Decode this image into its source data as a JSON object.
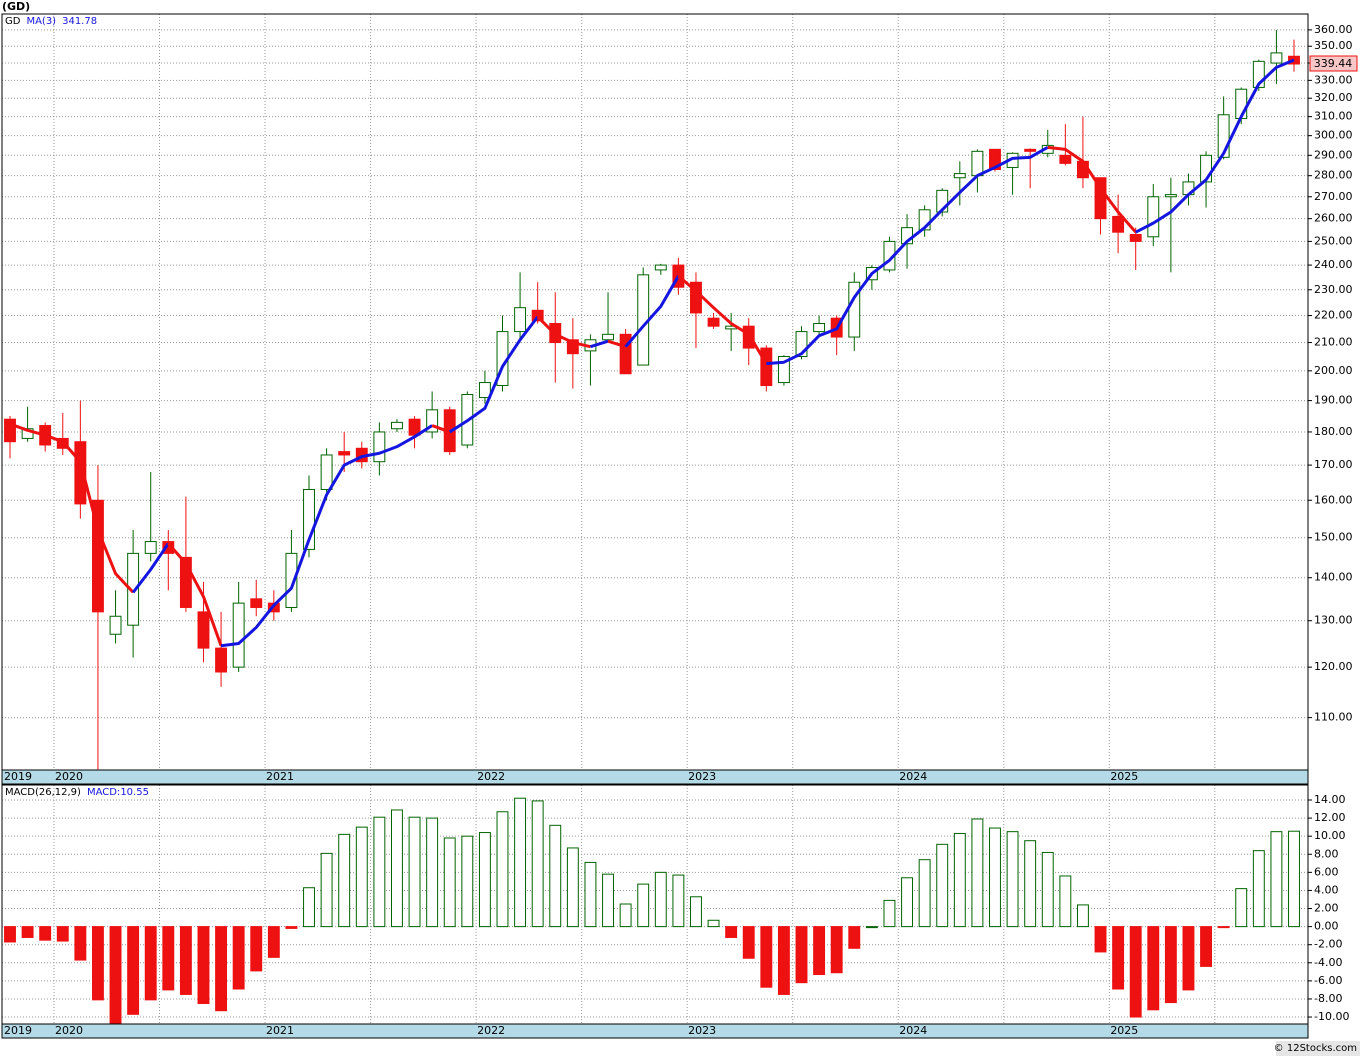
{
  "chart_data": [
    {
      "type": "candlestick",
      "title": "(GD)",
      "name": "GD",
      "categories": [
        "2019",
        null,
        null,
        "2020",
        null,
        null,
        null,
        null,
        null,
        null,
        null,
        null,
        null,
        null,
        null,
        "2021",
        null,
        null,
        null,
        null,
        null,
        null,
        null,
        null,
        null,
        null,
        null,
        "2022",
        null,
        null,
        null,
        null,
        null,
        null,
        null,
        null,
        null,
        null,
        null,
        "2023",
        null,
        null,
        null,
        null,
        null,
        null,
        null,
        null,
        null,
        null,
        null,
        "2024",
        null,
        null,
        null,
        null,
        null,
        null,
        null,
        null,
        null,
        null,
        null,
        "2025",
        null,
        null,
        null,
        null,
        null,
        null,
        null,
        null,
        null,
        null
      ],
      "open": [
        184,
        178,
        182,
        178,
        177,
        160,
        127,
        129,
        146,
        149,
        145,
        132,
        124,
        120,
        135,
        134,
        133,
        147,
        163,
        174,
        175,
        171,
        181,
        184,
        180,
        187,
        176,
        191,
        195,
        214,
        222,
        217,
        211,
        207,
        211,
        213,
        202,
        238,
        240,
        233,
        219,
        215,
        216,
        208,
        196,
        205,
        214,
        219,
        212,
        234,
        238,
        249,
        255,
        263,
        279,
        280,
        293,
        284,
        293,
        291,
        290,
        287,
        279,
        261,
        253,
        252,
        270,
        271,
        277,
        289,
        309,
        326,
        340,
        344
      ],
      "high": [
        185,
        188,
        183,
        186,
        190,
        170,
        137,
        152,
        168,
        152,
        161,
        139,
        132,
        139,
        139.5,
        137,
        152,
        167,
        175,
        180,
        177,
        183,
        184,
        185,
        193,
        188,
        193,
        200,
        220,
        237,
        233,
        229,
        219,
        213,
        229,
        215,
        239,
        240.5,
        243,
        237,
        221,
        221,
        219,
        209,
        205.5,
        216,
        220,
        220,
        237,
        240,
        252,
        262,
        266,
        274,
        287,
        293,
        293,
        291.5,
        293.5,
        303,
        306,
        310,
        279,
        271,
        256,
        276,
        279,
        281,
        292,
        321,
        326,
        342,
        360,
        354
      ],
      "low": [
        172,
        177,
        174,
        173,
        155,
        100.6,
        125,
        122,
        144,
        137,
        132,
        121,
        116,
        119,
        131,
        130,
        132,
        145,
        160,
        168,
        169,
        167,
        180,
        175,
        178,
        173,
        175,
        189,
        193,
        210,
        217,
        196,
        194,
        195,
        210,
        199,
        202,
        236,
        228,
        208,
        215,
        207,
        202,
        193,
        195,
        204,
        213,
        205.5,
        207,
        230,
        237,
        238.5,
        252,
        261,
        266,
        272,
        282,
        271,
        274,
        289,
        285,
        274,
        253,
        245,
        238,
        248,
        237,
        266,
        265,
        288,
        306,
        324,
        328,
        335
      ],
      "close": [
        177,
        181,
        176,
        175,
        159,
        132,
        131,
        146,
        149,
        146,
        133,
        124,
        119,
        134,
        133,
        132,
        146,
        163,
        173,
        173,
        171,
        180,
        183,
        179,
        187,
        174,
        192,
        196,
        214,
        223,
        218,
        210,
        206,
        211,
        213,
        199,
        236,
        240,
        231,
        221,
        216,
        216,
        208,
        195,
        205,
        214,
        217,
        212,
        233,
        239,
        250,
        256,
        264,
        273,
        281,
        292,
        283,
        291,
        292,
        295,
        286,
        279,
        260,
        254,
        250,
        270,
        271,
        277,
        290,
        311,
        325,
        341,
        346,
        339.44
      ],
      "up_color": "#006400",
      "down_color": "#ee1111",
      "ma": {
        "name": "MA(3)",
        "up_color": "#1515e0",
        "down_color": "#ee1111",
        "values": [
          182.5,
          180.5,
          179,
          177,
          171,
          152,
          141,
          136.5,
          142,
          148.5,
          143.5,
          135.5,
          124.5,
          125,
          128.5,
          133.5,
          137.5,
          149.5,
          161.5,
          170,
          172.5,
          173.5,
          175.5,
          178.5,
          182,
          180,
          183.5,
          187.5,
          201.5,
          211,
          219.5,
          213,
          210,
          208.5,
          210.5,
          208.5,
          216,
          223.5,
          235.5,
          229.5,
          223,
          217,
          213,
          202.5,
          203,
          206,
          212.5,
          215,
          227,
          236.5,
          242,
          250,
          256,
          264,
          272,
          280,
          284,
          288.5,
          289,
          294,
          293,
          287,
          274,
          263,
          254,
          258,
          263,
          271,
          278,
          291,
          310,
          328,
          337.5,
          341.78
        ]
      },
      "log_scale": true,
      "ylim": [
        100.5,
        370
      ],
      "grid": true,
      "yticks": [
        {
          "value": 110,
          "label": "110.00"
        },
        {
          "value": 120,
          "label": "120.00"
        },
        {
          "value": 130,
          "label": "130.00"
        },
        {
          "value": 140,
          "label": "140.00"
        },
        {
          "value": 150,
          "label": "150.00"
        },
        {
          "value": 160,
          "label": "160.00"
        },
        {
          "value": 170,
          "label": "170.00"
        },
        {
          "value": 180,
          "label": "180.00"
        },
        {
          "value": 190,
          "label": "190.00"
        },
        {
          "value": 200,
          "label": "200.00"
        },
        {
          "value": 210,
          "label": "210.00"
        },
        {
          "value": 220,
          "label": "220.00"
        },
        {
          "value": 230,
          "label": "230.00"
        },
        {
          "value": 240,
          "label": "240.00"
        },
        {
          "value": 250,
          "label": "250.00"
        },
        {
          "value": 260,
          "label": "260.00"
        },
        {
          "value": 270,
          "label": "270.00"
        },
        {
          "value": 280,
          "label": "280.00"
        },
        {
          "value": 290,
          "label": "290.00"
        },
        {
          "value": 300,
          "label": "300.00"
        },
        {
          "value": 310,
          "label": "310.00"
        },
        {
          "value": 320,
          "label": "320.00"
        },
        {
          "value": 330,
          "label": "330.00"
        },
        {
          "value": 340,
          "label": "340.00"
        },
        {
          "value": 350,
          "label": "350.00"
        },
        {
          "value": 360,
          "label": "360.00"
        }
      ]
    },
    {
      "type": "bar",
      "name": "MACD(26,12,9)",
      "value_prefix": "MACD:",
      "label_color": "#1515e0",
      "categories": [
        "2019",
        null,
        null,
        "2020",
        null,
        null,
        null,
        null,
        null,
        null,
        null,
        null,
        null,
        null,
        null,
        "2021",
        null,
        null,
        null,
        null,
        null,
        null,
        null,
        null,
        null,
        null,
        null,
        "2022",
        null,
        null,
        null,
        null,
        null,
        null,
        null,
        null,
        null,
        null,
        null,
        "2023",
        null,
        null,
        null,
        null,
        null,
        null,
        null,
        null,
        null,
        null,
        null,
        "2024",
        null,
        null,
        null,
        null,
        null,
        null,
        null,
        null,
        null,
        null,
        null,
        "2025",
        null,
        null,
        null,
        null,
        null,
        null,
        null,
        null,
        null,
        null
      ],
      "values": [
        -1.7,
        -1.2,
        -1.5,
        -1.6,
        -3.7,
        -8.1,
        -10.7,
        -9.7,
        -8.1,
        -7.0,
        -7.5,
        -8.5,
        -9.3,
        -6.9,
        -4.9,
        -3.4,
        -0.2,
        4.3,
        8.1,
        10.2,
        11.0,
        12.1,
        12.9,
        12.1,
        12.0,
        9.8,
        10.0,
        10.4,
        12.7,
        14.2,
        13.9,
        11.2,
        8.7,
        7.1,
        5.8,
        2.5,
        4.7,
        6.0,
        5.7,
        3.3,
        0.7,
        -1.2,
        -3.5,
        -6.7,
        -7.5,
        -6.2,
        -5.3,
        -5.1,
        -2.4,
        0,
        2.9,
        5.4,
        7.4,
        9.1,
        10.3,
        11.9,
        10.9,
        10.5,
        9.5,
        8.2,
        5.6,
        2.4,
        -2.8,
        -6.9,
        -10.0,
        -9.2,
        -8.4,
        -7.0,
        -4.4,
        -0.1,
        4.2,
        8.4,
        10.5,
        10.55
      ],
      "up_color": "#006400",
      "down_color": "#ee1111",
      "ylim": [
        -10.77,
        15.66
      ],
      "grid": true,
      "yticks": [
        {
          "value": 14,
          "label": "14.00"
        },
        {
          "value": 12,
          "label": "12.00"
        },
        {
          "value": 10,
          "label": "10.00"
        },
        {
          "value": 8,
          "label": "8.00"
        },
        {
          "value": 6,
          "label": "6.00"
        },
        {
          "value": 4,
          "label": "4.00"
        },
        {
          "value": 2,
          "label": "2.00"
        },
        {
          "value": 0,
          "label": "0.00"
        },
        {
          "value": -2,
          "label": "-2.00"
        },
        {
          "value": -4,
          "label": "-4.00"
        },
        {
          "value": -6,
          "label": "-6.00"
        },
        {
          "value": -8,
          "label": "-8.00"
        },
        {
          "value": -10,
          "label": "-10.00"
        }
      ]
    }
  ],
  "footer": "© 12Stocks.com"
}
